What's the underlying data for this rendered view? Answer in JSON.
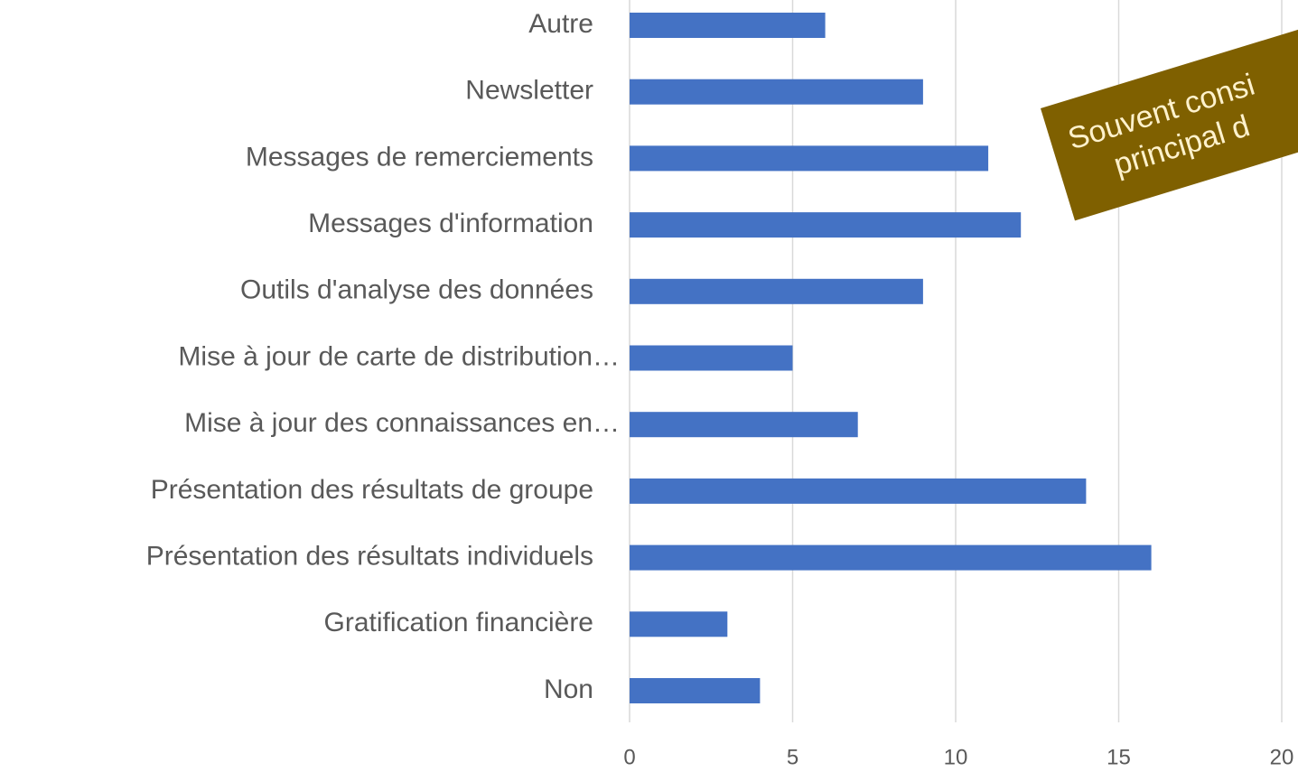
{
  "chart_data": {
    "type": "bar",
    "orientation": "horizontal",
    "categories": [
      "Autre",
      "Newsletter",
      "Messages de remerciements",
      "Messages d'information",
      "Outils d'analyse des données",
      "Mise à jour de carte de distribution…",
      "Mise à jour des connaissances en…",
      "Présentation des résultats de groupe",
      "Présentation des résultats individuels",
      "Gratification financière",
      "Non"
    ],
    "values": [
      6,
      9,
      11,
      12,
      9,
      5,
      7,
      14,
      16,
      3,
      4
    ],
    "color": "#4472c4",
    "xlim": [
      0,
      20
    ],
    "xticks": [
      0,
      5,
      10,
      15,
      20
    ],
    "grid": true,
    "annotation": {
      "lines": [
        "Souvent consi",
        "principal d"
      ],
      "color": "#7f6000"
    }
  }
}
